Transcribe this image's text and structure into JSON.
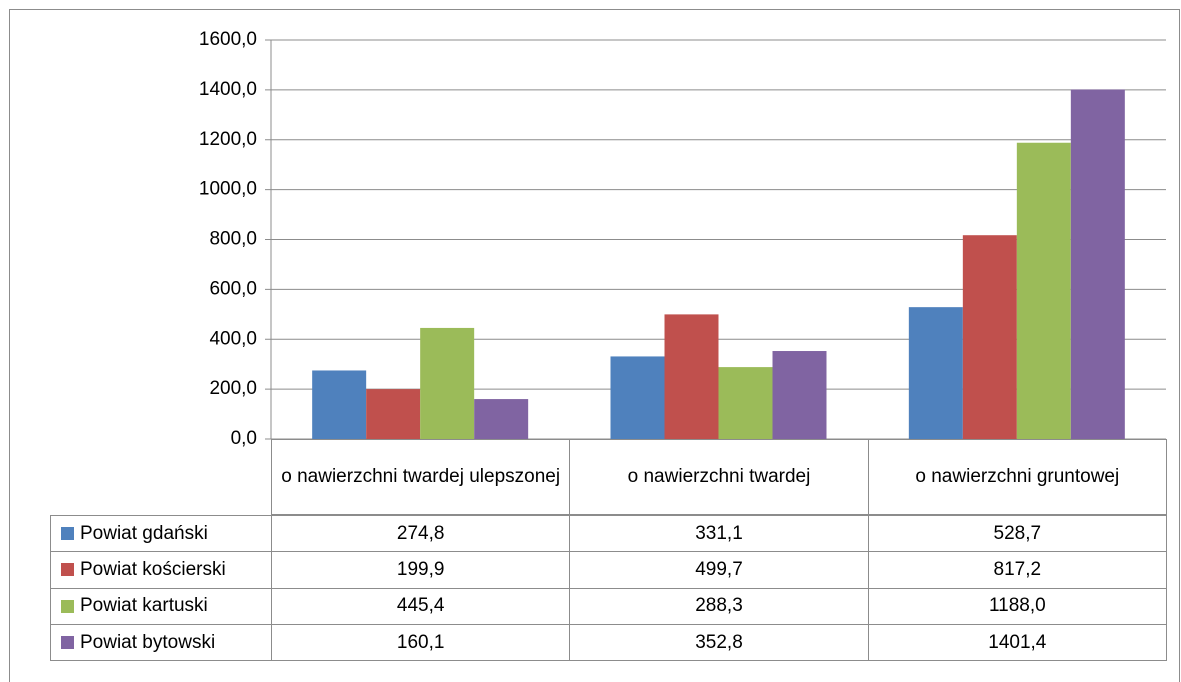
{
  "chart_data": {
    "type": "bar",
    "categories": [
      "o nawierzchni twardej ulepszonej",
      "o nawierzchni twardej",
      "o nawierzchni gruntowej"
    ],
    "series": [
      {
        "name": "Powiat gdański",
        "color": "#4f81bd",
        "values": [
          274.8,
          331.1,
          528.7
        ],
        "value_labels": [
          "274,8",
          "331,1",
          "528,7"
        ]
      },
      {
        "name": "Powiat kościerski",
        "color": "#c0504d",
        "values": [
          199.9,
          499.7,
          817.2
        ],
        "value_labels": [
          "199,9",
          "499,7",
          "817,2"
        ]
      },
      {
        "name": "Powiat kartuski",
        "color": "#9bbb59",
        "values": [
          445.4,
          288.3,
          1188.0
        ],
        "value_labels": [
          "445,4",
          "288,3",
          "1188,0"
        ]
      },
      {
        "name": "Powiat bytowski",
        "color": "#8064a2",
        "values": [
          160.1,
          352.8,
          1401.4
        ],
        "value_labels": [
          "160,1",
          "352,8",
          "1401,4"
        ]
      }
    ],
    "ylim": [
      0,
      1600
    ],
    "yticks": [
      {
        "value": 0,
        "label": "0,0"
      },
      {
        "value": 200,
        "label": "200,0"
      },
      {
        "value": 400,
        "label": "400,0"
      },
      {
        "value": 600,
        "label": "600,0"
      },
      {
        "value": 800,
        "label": "800,0"
      },
      {
        "value": 1000,
        "label": "1000,0"
      },
      {
        "value": 1200,
        "label": "1200,0"
      },
      {
        "value": 1400,
        "label": "1400,0"
      },
      {
        "value": 1600,
        "label": "1600,0"
      }
    ],
    "grid": true
  }
}
